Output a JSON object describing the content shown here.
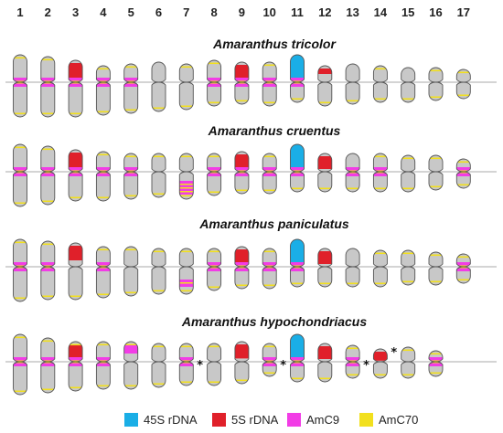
{
  "chromosome_numbers": [
    "1",
    "2",
    "3",
    "4",
    "5",
    "6",
    "7",
    "8",
    "9",
    "10",
    "11",
    "12",
    "13",
    "14",
    "15",
    "16",
    "17"
  ],
  "colors": {
    "chromosome": "#c8c8c8",
    "outline": "#555555",
    "45S": "#1aaee6",
    "5S": "#e0202a",
    "AmC9": "#f23ce6",
    "AmC70": "#f2e01e",
    "centromere_line": "#aaaaaa"
  },
  "legend": [
    {
      "label": "45S rDNA",
      "color_key": "45S"
    },
    {
      "label": "5S rDNA",
      "color_key": "5S"
    },
    {
      "label": "AmC9",
      "color_key": "AmC9"
    },
    {
      "label": "AmC70",
      "color_key": "AmC70"
    }
  ],
  "asterisk": "*",
  "panels": [
    {
      "species": "Amaranthus tricolor",
      "chromosomes": [
        {
          "n": 1,
          "p": 30,
          "q": 38,
          "ptel": true,
          "qtel": true,
          "cen": "AmC9",
          "extra": []
        },
        {
          "n": 2,
          "p": 28,
          "q": 38,
          "ptel": true,
          "qtel": true,
          "cen": "AmC9",
          "extra": []
        },
        {
          "n": 3,
          "p": 24,
          "q": 38,
          "ptel": false,
          "qtel": true,
          "cen": "AmC9",
          "p5S": true,
          "extra": []
        },
        {
          "n": 4,
          "p": 18,
          "q": 36,
          "ptel": true,
          "qtel": true,
          "cen": "AmC9",
          "extra": []
        },
        {
          "n": 5,
          "p": 20,
          "q": 34,
          "ptel": true,
          "qtel": true,
          "cen": "AmC9",
          "extra": []
        },
        {
          "n": 6,
          "p": 22,
          "q": 32,
          "ptel": false,
          "qtel": true,
          "cen": null,
          "extra": []
        },
        {
          "n": 7,
          "p": 20,
          "q": 30,
          "ptel": true,
          "qtel": true,
          "cen": null,
          "extra": []
        },
        {
          "n": 8,
          "p": 24,
          "q": 26,
          "ptel": true,
          "qtel": true,
          "cen": "AmC9",
          "extra": []
        },
        {
          "n": 9,
          "p": 22,
          "q": 24,
          "ptel": false,
          "qtel": true,
          "cen": "AmC9",
          "p5S": true,
          "extra": []
        },
        {
          "n": 10,
          "p": 22,
          "q": 26,
          "ptel": true,
          "qtel": true,
          "cen": "AmC9",
          "extra": []
        },
        {
          "n": 11,
          "p": 30,
          "q": 22,
          "ptel": false,
          "qtel": true,
          "cen": "AmC9",
          "p45S": true,
          "extra": []
        },
        {
          "n": 12,
          "p": 18,
          "q": 26,
          "ptel": false,
          "qtel": true,
          "cen": null,
          "p5S": true,
          "small5S": true,
          "extra": []
        },
        {
          "n": 13,
          "p": 20,
          "q": 24,
          "ptel": false,
          "qtel": true,
          "cen": null,
          "extra": []
        },
        {
          "n": 14,
          "p": 18,
          "q": 22,
          "ptel": true,
          "qtel": true,
          "cen": null,
          "extra": []
        },
        {
          "n": 15,
          "p": 16,
          "q": 22,
          "ptel": false,
          "qtel": true,
          "cen": null,
          "extra": []
        },
        {
          "n": 16,
          "p": 16,
          "q": 20,
          "ptel": true,
          "qtel": true,
          "cen": null,
          "extra": []
        },
        {
          "n": 17,
          "p": 14,
          "q": 18,
          "ptel": true,
          "qtel": true,
          "cen": null,
          "extra": []
        }
      ]
    },
    {
      "species": "Amaranthus cruentus",
      "chromosomes": [
        {
          "n": 1,
          "p": 30,
          "q": 38,
          "ptel": true,
          "qtel": true,
          "cen": "AmC9",
          "extra": []
        },
        {
          "n": 2,
          "p": 28,
          "q": 36,
          "ptel": true,
          "qtel": true,
          "cen": "AmC9",
          "extra": []
        },
        {
          "n": 3,
          "p": 24,
          "q": 32,
          "ptel": false,
          "qtel": true,
          "cen": "AmC9",
          "p5S": true,
          "extra": []
        },
        {
          "n": 4,
          "p": 22,
          "q": 32,
          "ptel": true,
          "qtel": true,
          "cen": "AmC9",
          "extra": []
        },
        {
          "n": 5,
          "p": 20,
          "q": 30,
          "ptel": true,
          "qtel": true,
          "cen": "AmC9",
          "extra": []
        },
        {
          "n": 6,
          "p": 20,
          "q": 28,
          "ptel": true,
          "qtel": true,
          "cen": null,
          "extra": []
        },
        {
          "n": 7,
          "p": 20,
          "q": 30,
          "ptel": true,
          "qtel": true,
          "cen": null,
          "extra": [
            "qband"
          ]
        },
        {
          "n": 8,
          "p": 20,
          "q": 26,
          "ptel": true,
          "qtel": true,
          "cen": "AmC9",
          "extra": []
        },
        {
          "n": 9,
          "p": 22,
          "q": 24,
          "ptel": false,
          "qtel": true,
          "cen": "AmC9",
          "p5S": true,
          "extra": []
        },
        {
          "n": 10,
          "p": 20,
          "q": 24,
          "ptel": true,
          "qtel": true,
          "cen": "AmC9",
          "extra": []
        },
        {
          "n": 11,
          "p": 30,
          "q": 22,
          "ptel": false,
          "qtel": true,
          "cen": "AmC9",
          "p45S": true,
          "extra": []
        },
        {
          "n": 12,
          "p": 20,
          "q": 22,
          "ptel": false,
          "qtel": true,
          "cen": null,
          "p5S": true,
          "extra": []
        },
        {
          "n": 13,
          "p": 20,
          "q": 22,
          "ptel": false,
          "qtel": true,
          "cen": "AmC9",
          "extra": []
        },
        {
          "n": 14,
          "p": 20,
          "q": 22,
          "ptel": true,
          "qtel": true,
          "cen": "AmC9",
          "extra": []
        },
        {
          "n": 15,
          "p": 18,
          "q": 22,
          "ptel": true,
          "qtel": true,
          "cen": null,
          "extra": []
        },
        {
          "n": 16,
          "p": 18,
          "q": 20,
          "ptel": true,
          "qtel": true,
          "cen": null,
          "extra": []
        },
        {
          "n": 17,
          "p": 14,
          "q": 18,
          "ptel": true,
          "qtel": true,
          "cen": "AmC9",
          "extra": []
        }
      ]
    },
    {
      "species": "Amaranthus paniculatus",
      "chromosomes": [
        {
          "n": 1,
          "p": 30,
          "q": 38,
          "ptel": true,
          "qtel": true,
          "cen": "AmC9",
          "extra": []
        },
        {
          "n": 2,
          "p": 28,
          "q": 36,
          "ptel": true,
          "qtel": true,
          "cen": "AmC9",
          "extra": []
        },
        {
          "n": 3,
          "p": 26,
          "q": 36,
          "ptel": false,
          "qtel": true,
          "cen": null,
          "p5S": true,
          "extra": []
        },
        {
          "n": 4,
          "p": 22,
          "q": 34,
          "ptel": true,
          "qtel": true,
          "cen": "AmC9",
          "extra": []
        },
        {
          "n": 5,
          "p": 22,
          "q": 32,
          "ptel": true,
          "qtel": true,
          "cen": null,
          "extra": []
        },
        {
          "n": 6,
          "p": 20,
          "q": 30,
          "ptel": true,
          "qtel": true,
          "cen": null,
          "extra": []
        },
        {
          "n": 7,
          "p": 20,
          "q": 30,
          "ptel": true,
          "qtel": true,
          "cen": null,
          "extra": [
            "qband2"
          ]
        },
        {
          "n": 8,
          "p": 20,
          "q": 26,
          "ptel": true,
          "qtel": true,
          "cen": "AmC9",
          "extra": []
        },
        {
          "n": 9,
          "p": 22,
          "q": 24,
          "ptel": false,
          "qtel": true,
          "cen": "AmC9",
          "p5S": true,
          "extra": []
        },
        {
          "n": 10,
          "p": 20,
          "q": 24,
          "ptel": true,
          "qtel": true,
          "cen": "AmC9",
          "extra": []
        },
        {
          "n": 11,
          "p": 30,
          "q": 22,
          "ptel": false,
          "qtel": true,
          "cen": "AmC9",
          "p45S": true,
          "extra": []
        },
        {
          "n": 12,
          "p": 20,
          "q": 22,
          "ptel": false,
          "qtel": true,
          "cen": null,
          "p5S": true,
          "extra": []
        },
        {
          "n": 13,
          "p": 20,
          "q": 22,
          "ptel": false,
          "qtel": true,
          "cen": null,
          "extra": []
        },
        {
          "n": 14,
          "p": 18,
          "q": 22,
          "ptel": true,
          "qtel": true,
          "cen": null,
          "extra": []
        },
        {
          "n": 15,
          "p": 18,
          "q": 20,
          "ptel": true,
          "qtel": true,
          "cen": null,
          "extra": []
        },
        {
          "n": 16,
          "p": 16,
          "q": 20,
          "ptel": true,
          "qtel": true,
          "cen": null,
          "extra": []
        },
        {
          "n": 17,
          "p": 14,
          "q": 18,
          "ptel": true,
          "qtel": true,
          "cen": "AmC9",
          "extra": []
        }
      ]
    },
    {
      "species": "Amaranthus hypochondriacus",
      "chromosomes": [
        {
          "n": 1,
          "p": 30,
          "q": 36,
          "ptel": true,
          "qtel": true,
          "cen": "AmC9",
          "extra": []
        },
        {
          "n": 2,
          "p": 26,
          "q": 34,
          "ptel": true,
          "qtel": true,
          "cen": "AmC9",
          "extra": []
        },
        {
          "n": 3,
          "p": 22,
          "q": 32,
          "ptel": true,
          "qtel": true,
          "cen": "AmC9",
          "p5S": true,
          "extra": []
        },
        {
          "n": 4,
          "p": 22,
          "q": 30,
          "ptel": true,
          "qtel": true,
          "cen": "AmC9",
          "extra": []
        },
        {
          "n": 5,
          "p": 22,
          "q": 30,
          "ptel": true,
          "qtel": true,
          "cen": null,
          "extra": [
            "pAmC9"
          ]
        },
        {
          "n": 6,
          "p": 20,
          "q": 28,
          "ptel": true,
          "qtel": true,
          "cen": null,
          "extra": []
        },
        {
          "n": 7,
          "p": 20,
          "q": 26,
          "ptel": true,
          "qtel": true,
          "cen": "AmC9",
          "star": true,
          "extra": []
        },
        {
          "n": 8,
          "p": 20,
          "q": 26,
          "ptel": true,
          "qtel": true,
          "cen": null,
          "extra": []
        },
        {
          "n": 9,
          "p": 22,
          "q": 24,
          "ptel": false,
          "qtel": true,
          "cen": null,
          "p5S": true,
          "extra": []
        },
        {
          "n": 10,
          "p": 20,
          "q": 16,
          "ptel": true,
          "qtel": true,
          "cen": "AmC9",
          "star": true,
          "extra": []
        },
        {
          "n": 11,
          "p": 30,
          "q": 22,
          "ptel": false,
          "qtel": true,
          "cen": "AmC9",
          "p45S": true,
          "extra": []
        },
        {
          "n": 12,
          "p": 20,
          "q": 22,
          "ptel": false,
          "qtel": true,
          "cen": null,
          "p5S": true,
          "extra": []
        },
        {
          "n": 13,
          "p": 18,
          "q": 18,
          "ptel": true,
          "qtel": true,
          "cen": "AmC9",
          "star": true,
          "extra": []
        },
        {
          "n": 14,
          "p": 14,
          "q": 18,
          "ptel": false,
          "qtel": true,
          "cen": null,
          "p5S": true,
          "star": true,
          "extra": []
        },
        {
          "n": 15,
          "p": 16,
          "q": 18,
          "ptel": true,
          "qtel": true,
          "cen": null,
          "extra": []
        },
        {
          "n": 16,
          "p": 12,
          "q": 16,
          "ptel": true,
          "qtel": true,
          "cen": "AmC9",
          "extra": []
        }
      ]
    }
  ]
}
